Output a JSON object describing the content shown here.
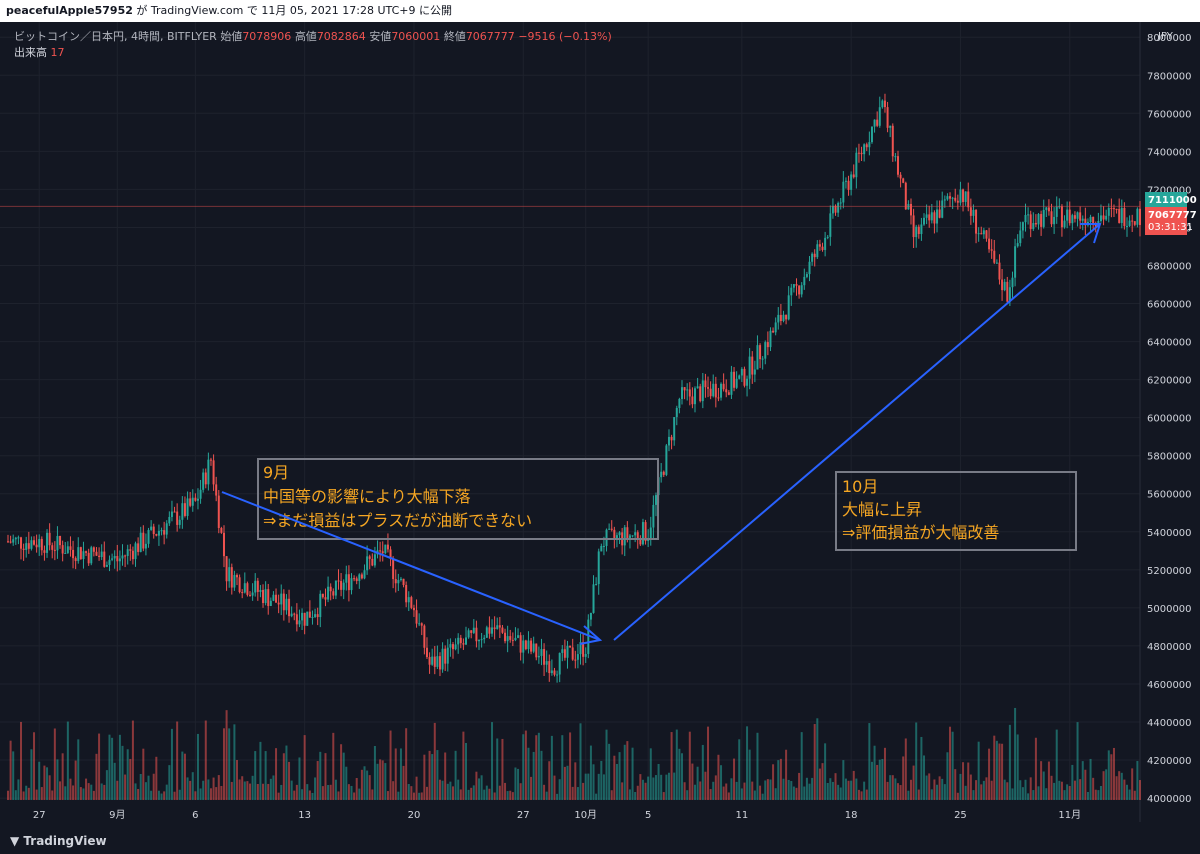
{
  "header": {
    "user": "peacefulApple57952",
    "caption": "が TradingView.com で 11月 05, 2021 17:28 UTC+9 に公開"
  },
  "legend": {
    "symbol": "ビットコイン／日本円, 4時間, BITFLYER",
    "open_label": "始値",
    "open": "7078906",
    "high_label": "高値",
    "high": "7082864",
    "low_label": "安値",
    "low": "7060001",
    "close_label": "終値",
    "close": "7067777",
    "change": "−9516 (−0.13%)",
    "volume_label": "出来高",
    "volume": "17"
  },
  "currency": "JPY",
  "price_tags": {
    "upper": "7111000",
    "current": "7067777",
    "countdown": "03:31:31"
  },
  "colors": {
    "up": "#26a69a",
    "down": "#ef5350",
    "arrow": "#2962ff",
    "annotation": "#f5a623",
    "box": "#787b86"
  },
  "annotations": [
    {
      "lines": [
        "9月",
        "中国等の影響により大幅下落",
        "⇒まだ損益はプラスだが油断できない"
      ]
    },
    {
      "lines": [
        "10月",
        "大幅に上昇",
        "⇒評価損益が大幅改善"
      ]
    }
  ],
  "footer": {
    "brand": "TradingView"
  },
  "chart_data": {
    "type": "candlestick",
    "title": "ビットコイン／日本円, 4時間, BITFLYER",
    "ylabel": "JPY",
    "ylim": [
      3990000,
      8080000
    ],
    "y_ticks": [
      "8000000",
      "7800000",
      "7600000",
      "7400000",
      "7200000",
      "7000000",
      "6800000",
      "6600000",
      "6400000",
      "6200000",
      "6000000",
      "5800000",
      "5600000",
      "5400000",
      "5200000",
      "5000000",
      "4800000",
      "4600000",
      "4400000",
      "4200000",
      "4000000"
    ],
    "x_ticks": [
      "27",
      "9月",
      "6",
      "13",
      "20",
      "27",
      "10月",
      "5",
      "11",
      "18",
      "25",
      "11月"
    ],
    "price_series": [
      {
        "date": "08-27",
        "price": 5350000
      },
      {
        "date": "09-01",
        "price": 5250000
      },
      {
        "date": "09-06",
        "price": 5550000
      },
      {
        "date": "09-07",
        "price": 5780000
      },
      {
        "date": "09-08",
        "price": 5180000
      },
      {
        "date": "09-13",
        "price": 4950000
      },
      {
        "date": "09-18",
        "price": 5300000
      },
      {
        "date": "09-20",
        "price": 5000000
      },
      {
        "date": "09-21",
        "price": 4700000
      },
      {
        "date": "09-25",
        "price": 4900000
      },
      {
        "date": "09-29",
        "price": 4700000
      },
      {
        "date": "10-01",
        "price": 4800000
      },
      {
        "date": "10-02",
        "price": 5350000
      },
      {
        "date": "10-05",
        "price": 5400000
      },
      {
        "date": "10-07",
        "price": 6100000
      },
      {
        "date": "10-11",
        "price": 6200000
      },
      {
        "date": "10-13",
        "price": 6450000
      },
      {
        "date": "10-16",
        "price": 6900000
      },
      {
        "date": "10-20",
        "price": 7650000
      },
      {
        "date": "10-22",
        "price": 6950000
      },
      {
        "date": "10-25",
        "price": 7200000
      },
      {
        "date": "10-28",
        "price": 6650000
      },
      {
        "date": "10-29",
        "price": 7050000
      },
      {
        "date": "11-05",
        "price": 7067777
      }
    ]
  }
}
